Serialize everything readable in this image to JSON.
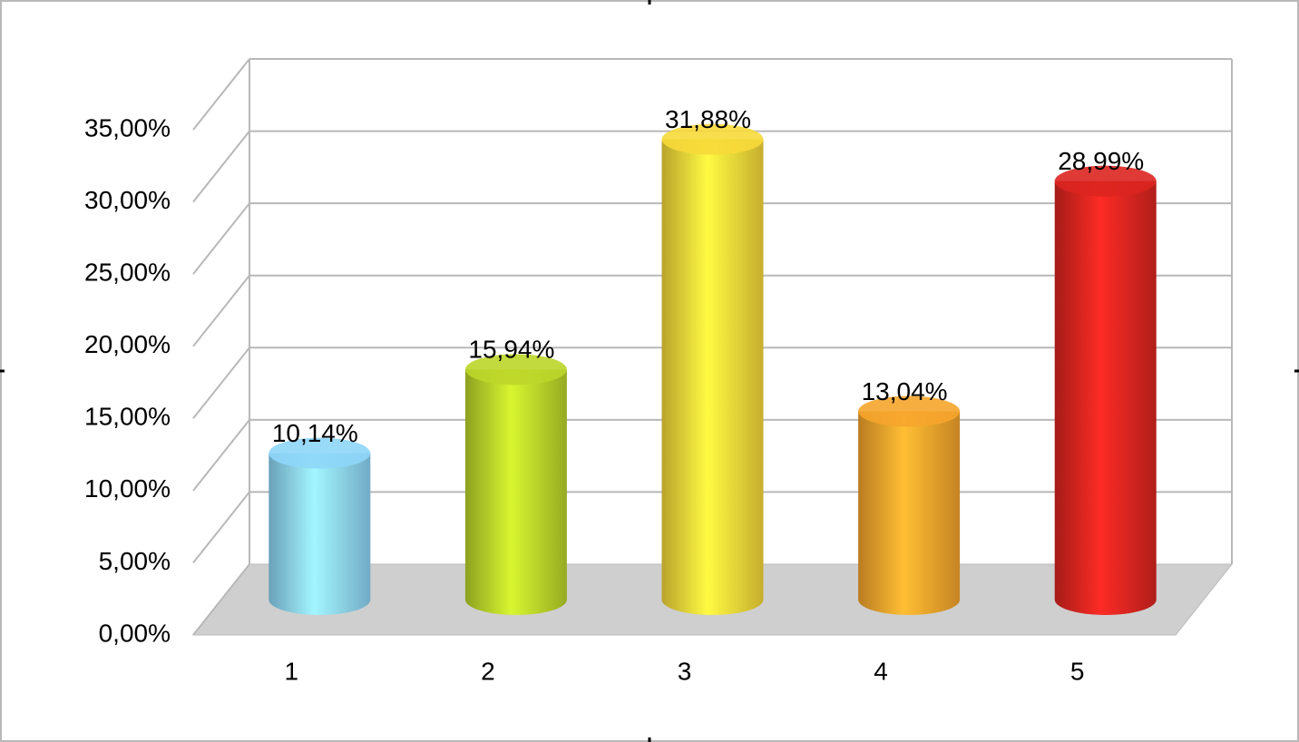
{
  "chart_data": {
    "type": "bar3d",
    "categories": [
      "1",
      "2",
      "3",
      "4",
      "5"
    ],
    "values": [
      10.14,
      15.94,
      31.88,
      13.04,
      28.99
    ],
    "value_labels": [
      "10,14%",
      "15,94%",
      "31,88%",
      "13,04%",
      "28,99%"
    ],
    "colors": [
      "#8ed6f8",
      "#bcd62a",
      "#f7d93a",
      "#f6a52c",
      "#dc2520"
    ],
    "ylim": [
      0,
      35
    ],
    "yticks": [
      {
        "value": 0,
        "label": "0,00%"
      },
      {
        "value": 5,
        "label": "5,00%"
      },
      {
        "value": 10,
        "label": "10,00%"
      },
      {
        "value": 15,
        "label": "15,00%"
      },
      {
        "value": 20,
        "label": "20,00%"
      },
      {
        "value": 25,
        "label": "25,00%"
      },
      {
        "value": 30,
        "label": "30,00%"
      },
      {
        "value": 35,
        "label": "35,00%"
      }
    ],
    "grid": true
  }
}
